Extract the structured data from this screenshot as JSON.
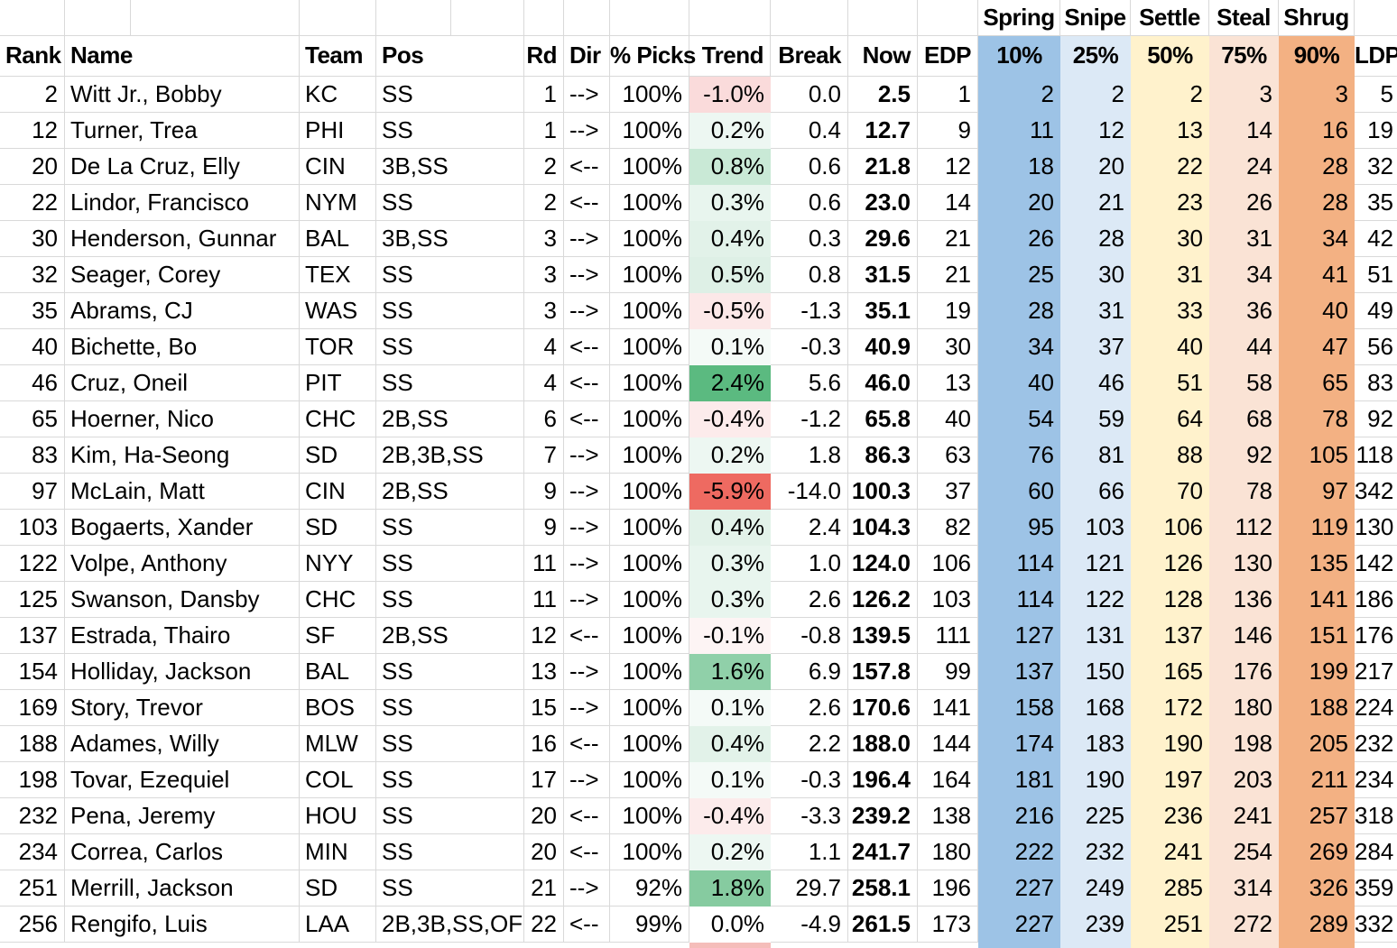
{
  "groups": [
    "Spring",
    "Snipe",
    "Settle",
    "Steal",
    "Shrug"
  ],
  "columns": [
    {
      "key": "rank",
      "label": "Rank"
    },
    {
      "key": "name",
      "label": "Name"
    },
    {
      "key": "team",
      "label": "Team"
    },
    {
      "key": "pos",
      "label": "Pos"
    },
    {
      "key": "rd",
      "label": "Rd"
    },
    {
      "key": "dir",
      "label": "Dir"
    },
    {
      "key": "picks",
      "label": "% Picks"
    },
    {
      "key": "trend",
      "label": "Trend"
    },
    {
      "key": "break",
      "label": "Break"
    },
    {
      "key": "now",
      "label": "Now"
    },
    {
      "key": "edp",
      "label": "EDP"
    },
    {
      "key": "p10",
      "label": "10%"
    },
    {
      "key": "p25",
      "label": "25%"
    },
    {
      "key": "p50",
      "label": "50%"
    },
    {
      "key": "p75",
      "label": "75%"
    },
    {
      "key": "p90",
      "label": "90%"
    },
    {
      "key": "ldp",
      "label": "LDP"
    }
  ],
  "colors": {
    "gridline": "#D9D9D9",
    "col_10pct": "#9DC3E6",
    "col_25pct": "#DCE9F6",
    "col_50pct": "#FFF2CC",
    "col_75pct": "#FAE3D5",
    "col_90pct": "#F3B183",
    "trend_full_green": "#5BBA80",
    "trend_full_red": "#EE6A61",
    "next_row_trend_sliver": "#F5BDBA"
  },
  "rows": [
    {
      "rank": "2",
      "name": "Witt Jr., Bobby",
      "team": "KC",
      "pos": "SS",
      "rd": "1",
      "dir": "-->",
      "picks": "100%",
      "trend": "-1.0%",
      "trend_color": "#FADBDB",
      "break": "0.0",
      "now": "2.5",
      "edp": "1",
      "p10": "2",
      "p25": "2",
      "p50": "2",
      "p75": "3",
      "p90": "3",
      "ldp": "5"
    },
    {
      "rank": "12",
      "name": "Turner, Trea",
      "team": "PHI",
      "pos": "SS",
      "rd": "1",
      "dir": "-->",
      "picks": "100%",
      "trend": "0.2%",
      "trend_color": "#EDF7F2",
      "break": "0.4",
      "now": "12.7",
      "edp": "9",
      "p10": "11",
      "p25": "12",
      "p50": "13",
      "p75": "14",
      "p90": "16",
      "ldp": "19"
    },
    {
      "rank": "20",
      "name": "De La Cruz, Elly",
      "team": "CIN",
      "pos": "3B,SS",
      "rd": "2",
      "dir": "<--",
      "picks": "100%",
      "trend": "0.8%",
      "trend_color": "#C9E9D6",
      "break": "0.6",
      "now": "21.8",
      "edp": "12",
      "p10": "18",
      "p25": "20",
      "p50": "22",
      "p75": "24",
      "p90": "28",
      "ldp": "32"
    },
    {
      "rank": "22",
      "name": "Lindor, Francisco",
      "team": "NYM",
      "pos": "SS",
      "rd": "2",
      "dir": "<--",
      "picks": "100%",
      "trend": "0.3%",
      "trend_color": "#E8F5EE",
      "break": "0.6",
      "now": "23.0",
      "edp": "14",
      "p10": "20",
      "p25": "21",
      "p50": "23",
      "p75": "26",
      "p90": "28",
      "ldp": "35"
    },
    {
      "rank": "30",
      "name": "Henderson, Gunnar",
      "team": "BAL",
      "pos": "3B,SS",
      "rd": "3",
      "dir": "-->",
      "picks": "100%",
      "trend": "0.4%",
      "trend_color": "#E2F2E9",
      "break": "0.3",
      "now": "29.6",
      "edp": "21",
      "p10": "26",
      "p25": "28",
      "p50": "30",
      "p75": "31",
      "p90": "34",
      "ldp": "42"
    },
    {
      "rank": "32",
      "name": "Seager, Corey",
      "team": "TEX",
      "pos": "SS",
      "rd": "3",
      "dir": "-->",
      "picks": "100%",
      "trend": "0.5%",
      "trend_color": "#DEF0E6",
      "break": "0.8",
      "now": "31.5",
      "edp": "21",
      "p10": "25",
      "p25": "30",
      "p50": "31",
      "p75": "34",
      "p90": "41",
      "ldp": "51"
    },
    {
      "rank": "35",
      "name": "Abrams, CJ",
      "team": "WAS",
      "pos": "SS",
      "rd": "3",
      "dir": "-->",
      "picks": "100%",
      "trend": "-0.5%",
      "trend_color": "#FCE8E8",
      "break": "-1.3",
      "now": "35.1",
      "edp": "19",
      "p10": "28",
      "p25": "31",
      "p50": "33",
      "p75": "36",
      "p90": "40",
      "ldp": "49"
    },
    {
      "rank": "40",
      "name": "Bichette, Bo",
      "team": "TOR",
      "pos": "SS",
      "rd": "4",
      "dir": "<--",
      "picks": "100%",
      "trend": "0.1%",
      "trend_color": "#F4FAF7",
      "break": "-0.3",
      "now": "40.9",
      "edp": "30",
      "p10": "34",
      "p25": "37",
      "p50": "40",
      "p75": "44",
      "p90": "47",
      "ldp": "56"
    },
    {
      "rank": "46",
      "name": "Cruz, Oneil",
      "team": "PIT",
      "pos": "SS",
      "rd": "4",
      "dir": "<--",
      "picks": "100%",
      "trend": "2.4%",
      "trend_color": "#5BBA80",
      "break": "5.6",
      "now": "46.0",
      "edp": "13",
      "p10": "40",
      "p25": "46",
      "p50": "51",
      "p75": "58",
      "p90": "65",
      "ldp": "83"
    },
    {
      "rank": "65",
      "name": "Hoerner, Nico",
      "team": "CHC",
      "pos": "2B,SS",
      "rd": "6",
      "dir": "<--",
      "picks": "100%",
      "trend": "-0.4%",
      "trend_color": "#FCEBEB",
      "break": "-1.2",
      "now": "65.8",
      "edp": "40",
      "p10": "54",
      "p25": "59",
      "p50": "64",
      "p75": "68",
      "p90": "78",
      "ldp": "92"
    },
    {
      "rank": "83",
      "name": "Kim, Ha-Seong",
      "team": "SD",
      "pos": "2B,3B,SS",
      "rd": "7",
      "dir": "-->",
      "picks": "100%",
      "trend": "0.2%",
      "trend_color": "#EDF7F2",
      "break": "1.8",
      "now": "86.3",
      "edp": "63",
      "p10": "76",
      "p25": "81",
      "p50": "88",
      "p75": "92",
      "p90": "105",
      "ldp": "118"
    },
    {
      "rank": "97",
      "name": "McLain, Matt",
      "team": "CIN",
      "pos": "2B,SS",
      "rd": "9",
      "dir": "-->",
      "picks": "100%",
      "trend": "-5.9%",
      "trend_color": "#EE6A61",
      "break": "-14.0",
      "now": "100.3",
      "edp": "37",
      "p10": "60",
      "p25": "66",
      "p50": "70",
      "p75": "78",
      "p90": "97",
      "ldp": "342"
    },
    {
      "rank": "103",
      "name": "Bogaerts, Xander",
      "team": "SD",
      "pos": "SS",
      "rd": "9",
      "dir": "-->",
      "picks": "100%",
      "trend": "0.4%",
      "trend_color": "#E2F2E9",
      "break": "2.4",
      "now": "104.3",
      "edp": "82",
      "p10": "95",
      "p25": "103",
      "p50": "106",
      "p75": "112",
      "p90": "119",
      "ldp": "130"
    },
    {
      "rank": "122",
      "name": "Volpe, Anthony",
      "team": "NYY",
      "pos": "SS",
      "rd": "11",
      "dir": "-->",
      "picks": "100%",
      "trend": "0.3%",
      "trend_color": "#E8F5EE",
      "break": "1.0",
      "now": "124.0",
      "edp": "106",
      "p10": "114",
      "p25": "121",
      "p50": "126",
      "p75": "130",
      "p90": "135",
      "ldp": "142"
    },
    {
      "rank": "125",
      "name": "Swanson, Dansby",
      "team": "CHC",
      "pos": "SS",
      "rd": "11",
      "dir": "-->",
      "picks": "100%",
      "trend": "0.3%",
      "trend_color": "#E8F5EE",
      "break": "2.6",
      "now": "126.2",
      "edp": "103",
      "p10": "114",
      "p25": "122",
      "p50": "128",
      "p75": "136",
      "p90": "141",
      "ldp": "186"
    },
    {
      "rank": "137",
      "name": "Estrada, Thairo",
      "team": "SF",
      "pos": "2B,SS",
      "rd": "12",
      "dir": "<--",
      "picks": "100%",
      "trend": "-0.1%",
      "trend_color": "#FDF4F4",
      "break": "-0.8",
      "now": "139.5",
      "edp": "111",
      "p10": "127",
      "p25": "131",
      "p50": "137",
      "p75": "146",
      "p90": "151",
      "ldp": "176"
    },
    {
      "rank": "154",
      "name": "Holliday, Jackson",
      "team": "BAL",
      "pos": "SS",
      "rd": "13",
      "dir": "-->",
      "picks": "100%",
      "trend": "1.6%",
      "trend_color": "#90D0A9",
      "break": "6.9",
      "now": "157.8",
      "edp": "99",
      "p10": "137",
      "p25": "150",
      "p50": "165",
      "p75": "176",
      "p90": "199",
      "ldp": "217"
    },
    {
      "rank": "169",
      "name": "Story, Trevor",
      "team": "BOS",
      "pos": "SS",
      "rd": "15",
      "dir": "-->",
      "picks": "100%",
      "trend": "0.1%",
      "trend_color": "#F4FAF7",
      "break": "2.6",
      "now": "170.6",
      "edp": "141",
      "p10": "158",
      "p25": "168",
      "p50": "172",
      "p75": "180",
      "p90": "188",
      "ldp": "224"
    },
    {
      "rank": "188",
      "name": "Adames, Willy",
      "team": "MLW",
      "pos": "SS",
      "rd": "16",
      "dir": "<--",
      "picks": "100%",
      "trend": "0.4%",
      "trend_color": "#E2F2E9",
      "break": "2.2",
      "now": "188.0",
      "edp": "144",
      "p10": "174",
      "p25": "183",
      "p50": "190",
      "p75": "198",
      "p90": "205",
      "ldp": "232"
    },
    {
      "rank": "198",
      "name": "Tovar, Ezequiel",
      "team": "COL",
      "pos": "SS",
      "rd": "17",
      "dir": "-->",
      "picks": "100%",
      "trend": "0.1%",
      "trend_color": "#F4FAF7",
      "break": "-0.3",
      "now": "196.4",
      "edp": "164",
      "p10": "181",
      "p25": "190",
      "p50": "197",
      "p75": "203",
      "p90": "211",
      "ldp": "234"
    },
    {
      "rank": "232",
      "name": "Pena, Jeremy",
      "team": "HOU",
      "pos": "SS",
      "rd": "20",
      "dir": "<--",
      "picks": "100%",
      "trend": "-0.4%",
      "trend_color": "#FCEBEB",
      "break": "-3.3",
      "now": "239.2",
      "edp": "138",
      "p10": "216",
      "p25": "225",
      "p50": "236",
      "p75": "241",
      "p90": "257",
      "ldp": "318"
    },
    {
      "rank": "234",
      "name": "Correa, Carlos",
      "team": "MIN",
      "pos": "SS",
      "rd": "20",
      "dir": "<--",
      "picks": "100%",
      "trend": "0.2%",
      "trend_color": "#EDF7F2",
      "break": "1.1",
      "now": "241.7",
      "edp": "180",
      "p10": "222",
      "p25": "232",
      "p50": "241",
      "p75": "254",
      "p90": "269",
      "ldp": "284"
    },
    {
      "rank": "251",
      "name": "Merrill, Jackson",
      "team": "SD",
      "pos": "SS",
      "rd": "21",
      "dir": "-->",
      "picks": "92%",
      "trend": "1.8%",
      "trend_color": "#86CBA0",
      "break": "29.7",
      "now": "258.1",
      "edp": "196",
      "p10": "227",
      "p25": "249",
      "p50": "285",
      "p75": "314",
      "p90": "326",
      "ldp": "359"
    },
    {
      "rank": "256",
      "name": "Rengifo, Luis",
      "team": "LAA",
      "pos": "2B,3B,SS,OF",
      "rd": "22",
      "dir": "<--",
      "picks": "99%",
      "trend": "0.0%",
      "trend_color": "#FFFFFF",
      "break": "-4.9",
      "now": "261.5",
      "edp": "173",
      "p10": "227",
      "p25": "239",
      "p50": "251",
      "p75": "272",
      "p90": "289",
      "ldp": "332"
    }
  ]
}
